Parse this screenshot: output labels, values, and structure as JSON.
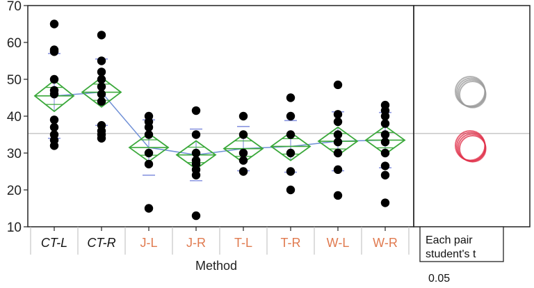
{
  "chart_data": {
    "type": "scatter",
    "xlabel": "Method",
    "ylim": [
      10,
      70
    ],
    "yticks": [
      10,
      20,
      30,
      40,
      50,
      60,
      70
    ],
    "grand_mean": 35.3,
    "categories": [
      "CT-L",
      "CT-R",
      "J-L",
      "J-R",
      "T-L",
      "T-R",
      "W-L",
      "W-R"
    ],
    "category_colors": [
      "#111111",
      "#111111",
      "#e07a4f",
      "#e07a4f",
      "#e07a4f",
      "#e07a4f",
      "#e07a4f",
      "#e07a4f"
    ],
    "italic_categories": [
      "CT-L",
      "CT-R"
    ],
    "means": [
      45.5,
      46.5,
      31.5,
      29.5,
      31.2,
      31.8,
      33.2,
      33.5
    ],
    "ci_half_width": [
      4.2,
      4.0,
      3.8,
      3.8,
      3.8,
      3.8,
      3.8,
      3.8
    ],
    "std_dev": [
      11.5,
      9.0,
      7.5,
      7.0,
      6.0,
      7.0,
      8.0,
      7.5
    ],
    "points": [
      [
        65,
        58,
        57.5,
        50,
        47,
        46,
        39,
        37,
        35,
        33.5,
        32
      ],
      [
        62,
        55,
        52,
        50,
        48,
        46,
        44,
        37.5,
        36,
        35,
        34
      ],
      [
        40,
        38.5,
        37,
        35,
        30,
        27,
        15
      ],
      [
        41.5,
        35,
        30,
        28,
        27,
        25.5,
        24,
        13
      ],
      [
        40,
        35,
        30,
        28,
        25
      ],
      [
        45,
        40,
        35,
        30,
        25,
        20
      ],
      [
        48.5,
        40.5,
        38.5,
        35,
        33,
        30,
        25.5,
        18.5
      ],
      [
        43,
        41.5,
        40,
        38,
        35,
        33,
        30,
        26.5,
        24,
        16.5
      ]
    ],
    "comparison": {
      "label_line1": "Each pair",
      "label_line2": "student's t",
      "alpha": "0.05",
      "circles": [
        {
          "center": 46.3,
          "radius": 4.0,
          "color": "#9a9a9a"
        },
        {
          "center": 31.6,
          "radius": 4.0,
          "color": "#e0304a"
        }
      ]
    },
    "colors": {
      "diamond": "#3aa83a",
      "means_line": "#6f8fd6",
      "grand_mean_line": "#c8c8c8",
      "points": "#000000",
      "ci_bars": "#8b96e0"
    }
  }
}
